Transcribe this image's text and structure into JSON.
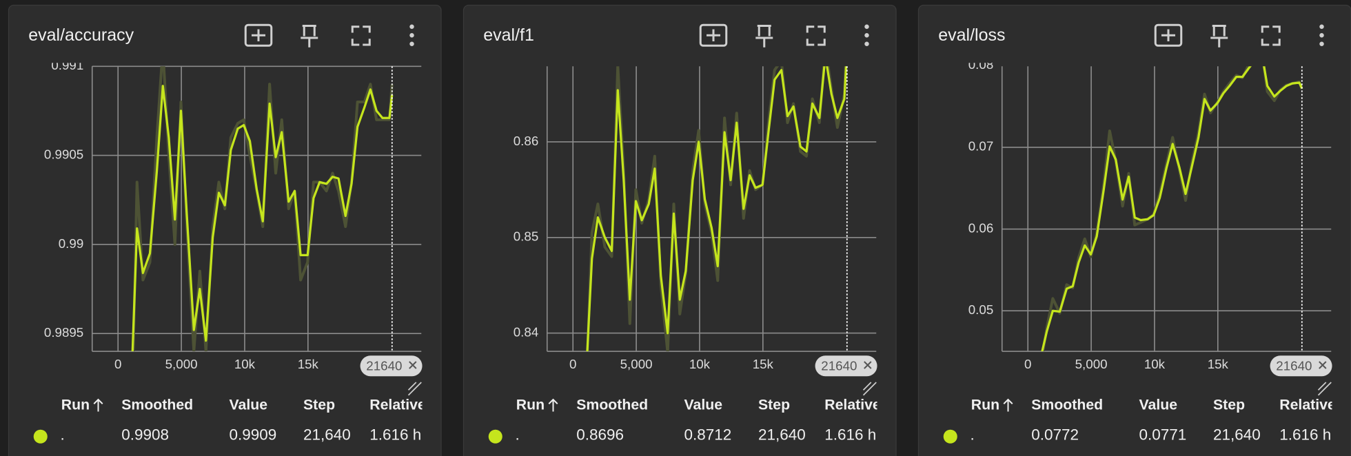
{
  "chart_data": [
    {
      "type": "line",
      "title": "eval/accuracy",
      "x": [
        1090,
        1500,
        1970,
        2520,
        3060,
        3540,
        4010,
        4490,
        4970,
        5440,
        5990,
        6460,
        6940,
        7480,
        7960,
        8440,
        8910,
        9460,
        9930,
        10410,
        10950,
        11430,
        11970,
        12450,
        12930,
        13470,
        13950,
        14420,
        14970,
        15440,
        15920,
        16460,
        16940,
        17410,
        17960,
        18440,
        18910,
        19460,
        19930,
        20410,
        20880,
        21430,
        21640
      ],
      "series": [
        {
          "color": "#4d5235",
          "values": [
            0.989,
            0.99035,
            0.9898,
            0.9899,
            0.9906,
            0.9911,
            0.9905,
            0.99,
            0.9908,
            0.9901,
            0.9894,
            0.98985,
            0.9894,
            0.9901,
            0.99035,
            0.9902,
            0.9906,
            0.99068,
            0.9907,
            0.9905,
            0.9903,
            0.9901,
            0.9909,
            0.9904,
            0.9907,
            0.9902,
            0.9903,
            0.9898,
            0.9899,
            0.99035,
            0.99035,
            0.9903,
            0.9904,
            0.9903,
            0.9901,
            0.99035,
            0.9908,
            0.9908,
            0.9909,
            0.9907,
            0.9907,
            0.9907,
            0.9909
          ]
        },
        {
          "color": "#c5e51d",
          "values": [
            0.98929,
            0.99009,
            0.98984,
            0.98995,
            0.99041,
            0.99089,
            0.9906,
            0.99014,
            0.99075,
            0.99016,
            0.98952,
            0.98975,
            0.98946,
            0.99004,
            0.99029,
            0.99022,
            0.99053,
            0.99065,
            0.99067,
            0.99058,
            0.99031,
            0.99013,
            0.99079,
            0.99049,
            0.99063,
            0.99024,
            0.9903,
            0.98994,
            0.98994,
            0.99026,
            0.99035,
            0.99034,
            0.99038,
            0.99037,
            0.99016,
            0.99034,
            0.99066,
            0.99077,
            0.99087,
            0.99075,
            0.99071,
            0.99071,
            0.99084
          ]
        }
      ],
      "xlim": [
        -2040,
        23950
      ],
      "xticks": [
        0,
        {
          "value": 5000,
          "label": "5,000"
        },
        {
          "value": 10000,
          "label": "10k"
        },
        {
          "value": 15000,
          "label": "15k"
        }
      ],
      "ylim": [
        0.9894,
        0.991
      ],
      "yticks": [
        0.9895,
        0.99,
        0.9905,
        0.991
      ],
      "grid": true,
      "cursor_step": 21640
    },
    {
      "type": "line",
      "title": "eval/f1",
      "x": [
        1090,
        1500,
        1970,
        2520,
        3060,
        3540,
        4010,
        4490,
        4970,
        5440,
        5990,
        6460,
        6940,
        7480,
        7960,
        8440,
        8910,
        9460,
        9930,
        10410,
        10950,
        11430,
        11970,
        12450,
        12930,
        13470,
        13950,
        14420,
        14970,
        15440,
        15920,
        16460,
        16940,
        17410,
        17960,
        18440,
        18910,
        19460,
        19930,
        20410,
        20880,
        21430,
        21640
      ],
      "series": [
        {
          "color": "#4d5235",
          "values": [
            0.836,
            0.8505,
            0.8535,
            0.849,
            0.848,
            0.868,
            0.857,
            0.841,
            0.855,
            0.8515,
            0.854,
            0.8585,
            0.845,
            0.838,
            0.8535,
            0.842,
            0.8462,
            0.857,
            0.8612,
            0.8535,
            0.8505,
            0.8455,
            0.8625,
            0.8555,
            0.863,
            0.852,
            0.857,
            0.855,
            0.8555,
            0.862,
            0.8675,
            0.8685,
            0.862,
            0.864,
            0.859,
            0.8585,
            0.8645,
            0.862,
            0.87,
            0.8655,
            0.8615,
            0.865,
            0.8712
          ]
        },
        {
          "color": "#c5e51d",
          "values": [
            0.837,
            0.8478,
            0.8521,
            0.85,
            0.8486,
            0.8654,
            0.856,
            0.8435,
            0.8538,
            0.8518,
            0.8535,
            0.8572,
            0.846,
            0.84,
            0.8525,
            0.8435,
            0.8465,
            0.856,
            0.86,
            0.854,
            0.851,
            0.847,
            0.861,
            0.856,
            0.862,
            0.853,
            0.8565,
            0.8552,
            0.8555,
            0.861,
            0.8665,
            0.8675,
            0.8627,
            0.8637,
            0.8595,
            0.859,
            0.864,
            0.8625,
            0.869,
            0.865,
            0.8625,
            0.8645,
            0.8696
          ]
        }
      ],
      "xlim": [
        -2040,
        23950
      ],
      "xticks": [
        0,
        {
          "value": 5000,
          "label": "5,000"
        },
        {
          "value": 10000,
          "label": "10k"
        },
        {
          "value": 15000,
          "label": "15k"
        }
      ],
      "ylim": [
        0.8381,
        0.8679
      ],
      "yticks": [
        0.84,
        0.85,
        0.86
      ],
      "grid": true,
      "cursor_step": 21640
    },
    {
      "type": "line",
      "title": "eval/loss",
      "x": [
        1090,
        1500,
        1970,
        2520,
        3060,
        3540,
        4010,
        4490,
        4970,
        5440,
        5990,
        6460,
        6940,
        7480,
        7960,
        8440,
        8910,
        9460,
        9930,
        10410,
        10950,
        11430,
        11970,
        12450,
        12930,
        13470,
        13950,
        14420,
        14970,
        15440,
        15920,
        16460,
        16940,
        17410,
        17960,
        18440,
        18910,
        19460,
        19930,
        20410,
        20880,
        21430,
        21640
      ],
      "series": [
        {
          "color": "#4d5235",
          "values": [
            0.044,
            0.048,
            0.0515,
            0.0497,
            0.0532,
            0.0528,
            0.0565,
            0.0588,
            0.0566,
            0.0595,
            0.0655,
            0.072,
            0.0683,
            0.0628,
            0.0668,
            0.0605,
            0.0608,
            0.0612,
            0.0618,
            0.0643,
            0.068,
            0.0712,
            0.0672,
            0.0635,
            0.068,
            0.0718,
            0.0765,
            0.0742,
            0.0755,
            0.0768,
            0.0778,
            0.0788,
            0.0785,
            0.08,
            0.0812,
            0.0822,
            0.0768,
            0.0757,
            0.077,
            0.0776,
            0.0778,
            0.078,
            0.0771
          ]
        },
        {
          "color": "#c5e51d",
          "values": [
            0.0448,
            0.0475,
            0.05,
            0.0499,
            0.0527,
            0.053,
            0.0559,
            0.058,
            0.0569,
            0.0591,
            0.0648,
            0.0701,
            0.0685,
            0.0636,
            0.0664,
            0.0614,
            0.0611,
            0.0612,
            0.0617,
            0.0638,
            0.0675,
            0.0704,
            0.0675,
            0.0643,
            0.0675,
            0.0712,
            0.0759,
            0.0745,
            0.0754,
            0.0766,
            0.0775,
            0.0786,
            0.0786,
            0.0796,
            0.0807,
            0.0818,
            0.0775,
            0.0762,
            0.0769,
            0.0775,
            0.0778,
            0.0779,
            0.0772
          ]
        }
      ],
      "xlim": [
        -2040,
        23950
      ],
      "xticks": [
        0,
        {
          "value": 5000,
          "label": "5,000"
        },
        {
          "value": 10000,
          "label": "10k"
        },
        {
          "value": 15000,
          "label": "15k"
        }
      ],
      "ylim": [
        0.04505,
        0.0799
      ],
      "yticks": [
        0.05,
        0.06,
        0.07,
        0.08
      ],
      "grid": true,
      "cursor_step": 21640
    }
  ],
  "tables": [
    {
      "columns": [
        "Run",
        "Smoothed",
        "Value",
        "Step",
        "Relative"
      ],
      "row": [
        ".",
        "0.9908",
        "0.9909",
        "21,640",
        "1.616 h"
      ]
    },
    {
      "columns": [
        "Run",
        "Smoothed",
        "Value",
        "Step",
        "Relative"
      ],
      "row": [
        ".",
        "0.8696",
        "0.8712",
        "21,640",
        "1.616 h"
      ]
    },
    {
      "columns": [
        "Run",
        "Smoothed",
        "Value",
        "Step",
        "Relative"
      ],
      "row": [
        ".",
        "0.0772",
        "0.0771",
        "21,640",
        "1.616 h"
      ]
    }
  ]
}
